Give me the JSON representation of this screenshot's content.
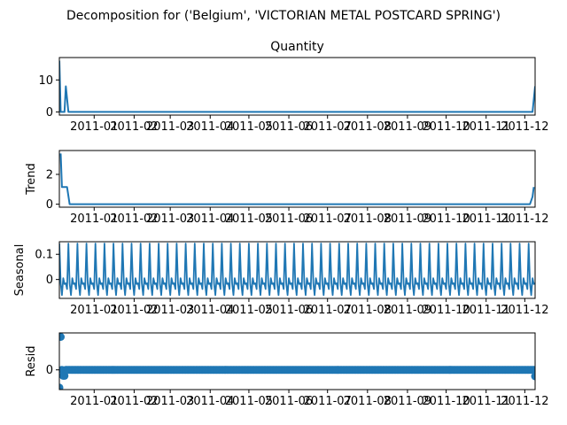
{
  "chart_data": {
    "suptitle": "Decomposition for ('Belgium', 'VICTORIAN  METAL POSTCARD SPRING')",
    "x_tick_labels": [
      "2011-01",
      "2011-02",
      "2011-03",
      "2011-04",
      "2011-05",
      "2011-06",
      "2011-07",
      "2011-08",
      "2011-09",
      "2011-10",
      "2011-11",
      "2011-12"
    ],
    "x_tick_dates": [
      "2011-01-01",
      "2011-02-01",
      "2011-03-01",
      "2011-04-01",
      "2011-05-01",
      "2011-06-01",
      "2011-07-01",
      "2011-08-01",
      "2011-09-01",
      "2011-10-01",
      "2011-11-01",
      "2011-12-01"
    ],
    "x_range": [
      "2010-12-05",
      "2011-12-09"
    ],
    "color": "#1f77b4",
    "panels": [
      {
        "type": "line",
        "title": "Quantity",
        "ylabel": "",
        "ylim": [
          -1,
          17
        ],
        "yticks": [
          0,
          10
        ],
        "points": [
          [
            "2010-12-05",
            16
          ],
          [
            "2010-12-06",
            0
          ],
          [
            "2010-12-09",
            0
          ],
          [
            "2010-12-10",
            8
          ],
          [
            "2010-12-12",
            0
          ],
          [
            "2011-12-07",
            0
          ],
          [
            "2011-12-09",
            8
          ]
        ]
      },
      {
        "type": "line",
        "title": "",
        "ylabel": "Trend",
        "ylim": [
          -0.2,
          3.6
        ],
        "yticks": [
          0,
          2
        ],
        "points": [
          [
            "2010-12-06",
            3.4
          ],
          [
            "2010-12-07",
            1.15
          ],
          [
            "2010-12-11",
            1.15
          ],
          [
            "2010-12-13",
            0
          ],
          [
            "2011-12-05",
            0
          ],
          [
            "2011-12-07",
            0.5
          ],
          [
            "2011-12-08",
            1.15
          ]
        ]
      },
      {
        "type": "seasonal",
        "title": "",
        "ylabel": "Seasonal",
        "ylim": [
          -0.075,
          0.15
        ],
        "yticks": [
          0.0,
          0.1
        ],
        "period_days": 7,
        "pattern": [
          0.143,
          -0.015,
          -0.062,
          0.005,
          -0.018,
          -0.015,
          -0.038
        ]
      },
      {
        "type": "scatter",
        "title": "",
        "ylabel": "Resid",
        "ylim": [
          -4,
          7.5
        ],
        "yticks": [
          0
        ],
        "outliers": [
          [
            "2010-12-05",
            -3.6
          ],
          [
            "2010-12-06",
            6.7
          ],
          [
            "2010-12-08",
            -1.2
          ],
          [
            "2010-12-09",
            -1.2
          ],
          [
            "2011-12-09",
            -1.3
          ]
        ],
        "typical_value": 0
      }
    ]
  }
}
